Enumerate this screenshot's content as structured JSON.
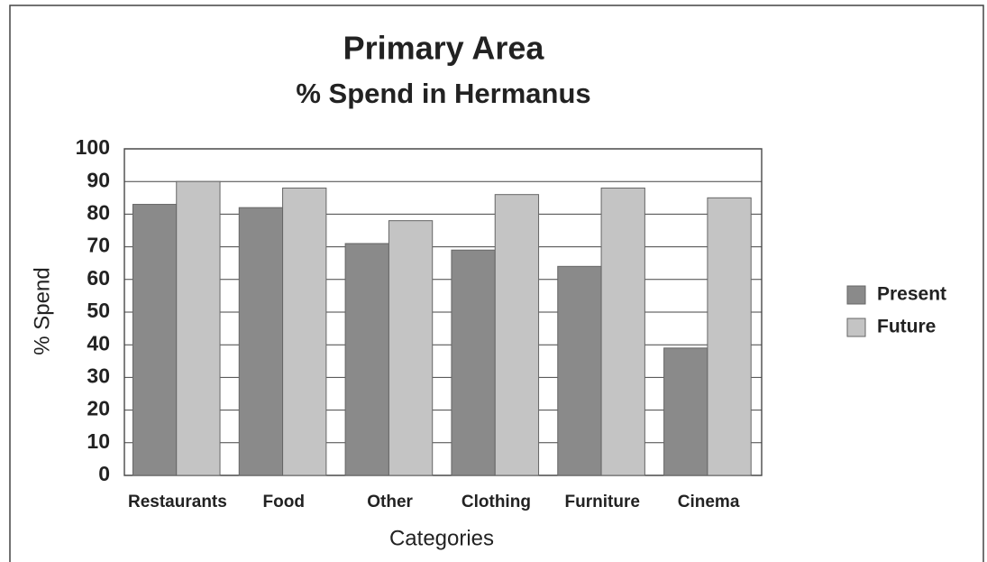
{
  "chart_data": {
    "type": "bar",
    "title": "Primary Area",
    "subtitle": "% Spend in Hermanus",
    "x_label": "Categories",
    "y_label": "% Spend",
    "categories": [
      "Restaurants",
      "Food",
      "Other",
      "Clothing",
      "Furniture",
      "Cinema"
    ],
    "series": [
      {
        "name": "Present",
        "color": "#8a8a8a",
        "values": [
          83,
          82,
          71,
          69,
          64,
          39
        ]
      },
      {
        "name": "Future",
        "color": "#c4c4c4",
        "values": [
          90,
          88,
          78,
          86,
          88,
          85
        ]
      }
    ],
    "ylim": [
      0,
      100
    ],
    "yticks": [
      0,
      10,
      20,
      30,
      40,
      50,
      60,
      70,
      80,
      90,
      100
    ],
    "grid": true,
    "legend": "right"
  }
}
